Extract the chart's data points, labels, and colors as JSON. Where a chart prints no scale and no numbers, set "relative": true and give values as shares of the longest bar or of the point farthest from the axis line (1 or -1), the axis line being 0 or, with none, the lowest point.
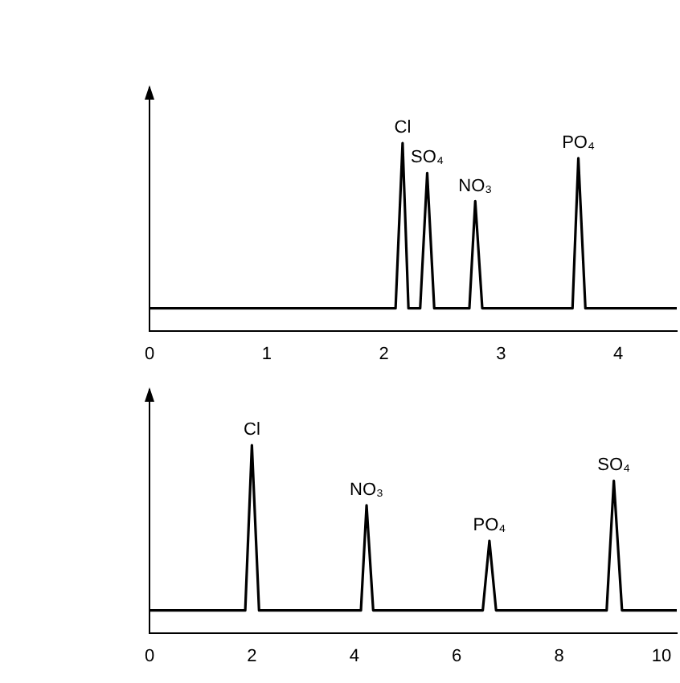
{
  "chart_data": [
    {
      "type": "line",
      "relative": true,
      "xlim": [
        0,
        4.5
      ],
      "xticks": [
        0,
        1,
        2,
        3,
        4
      ],
      "series": [
        {
          "color": "#000000",
          "x": [
            0,
            2.1,
            2.16,
            2.21,
            2.31,
            2.37,
            2.43,
            2.73,
            2.78,
            2.84,
            3.61,
            3.66,
            3.72,
            4.5
          ],
          "values": [
            0.12,
            0.12,
            1,
            0.12,
            0.12,
            0.84,
            0.12,
            0.12,
            0.69,
            0.12,
            0.12,
            0.92,
            0.12,
            0.12
          ]
        }
      ],
      "annotations": [
        {
          "text": "Cl",
          "x": 2.16,
          "y": 1
        },
        {
          "text": "SO₄",
          "x": 2.37,
          "y": 0.84
        },
        {
          "text": "NO₃",
          "x": 2.78,
          "y": 0.69
        },
        {
          "text": "PO₄",
          "x": 3.66,
          "y": 0.92
        }
      ]
    },
    {
      "type": "line",
      "relative": true,
      "xlim": [
        0,
        10.3
      ],
      "xticks": [
        0,
        2,
        4,
        6,
        8,
        10
      ],
      "series": [
        {
          "color": "#000000",
          "x": [
            0,
            1.87,
            2.0,
            2.14,
            4.13,
            4.24,
            4.37,
            6.51,
            6.64,
            6.77,
            8.93,
            9.07,
            9.23,
            10.3
          ],
          "values": [
            0.12,
            0.12,
            1,
            0.12,
            0.12,
            0.68,
            0.12,
            0.12,
            0.49,
            0.12,
            0.12,
            0.81,
            0.12,
            0.12
          ]
        }
      ],
      "annotations": [
        {
          "text": "Cl",
          "x": 2.0,
          "y": 1
        },
        {
          "text": "NO₃",
          "x": 4.24,
          "y": 0.68
        },
        {
          "text": "PO₄",
          "x": 6.64,
          "y": 0.49
        },
        {
          "text": "SO₄",
          "x": 9.07,
          "y": 0.81
        }
      ]
    }
  ]
}
